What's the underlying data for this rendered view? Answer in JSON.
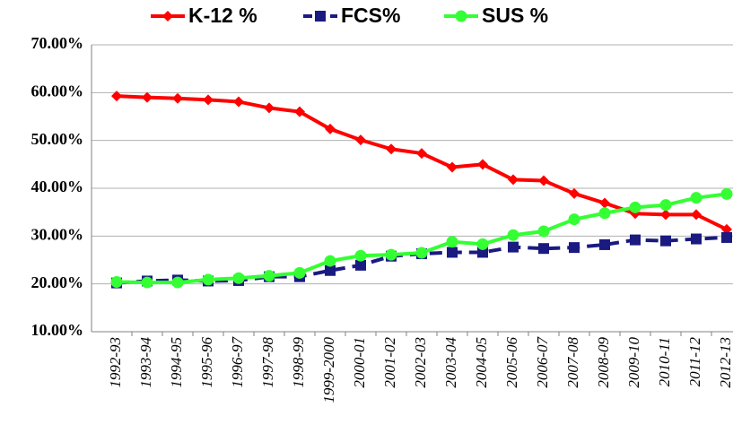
{
  "chart_data": {
    "type": "line",
    "categories": [
      "1992-93",
      "1993-94",
      "1994-95",
      "1995-96",
      "1996-97",
      "1997-98",
      "1998-99",
      "1999-2000",
      "2000-01",
      "2001-02",
      "2002-03",
      "2003-04",
      "2004-05",
      "2005-06",
      "2006-07",
      "2007-08",
      "2008-09",
      "2009-10",
      "2010-11",
      "2011-12",
      "2012-13"
    ],
    "series": [
      {
        "name": "K-12 %",
        "color": "#ff0000",
        "marker": "diamond",
        "dash": false,
        "values": [
          59.3,
          59.0,
          58.8,
          58.5,
          58.1,
          56.8,
          56.0,
          52.4,
          50.1,
          48.2,
          47.3,
          44.4,
          45.0,
          41.8,
          41.6,
          38.9,
          36.9,
          34.7,
          34.5,
          34.5,
          31.4
        ]
      },
      {
        "name": "FCS%",
        "color": "#1a1a80",
        "marker": "square",
        "dash": true,
        "values": [
          20.2,
          20.6,
          20.8,
          20.6,
          20.7,
          21.5,
          21.5,
          22.8,
          23.9,
          25.8,
          26.3,
          26.6,
          26.6,
          27.7,
          27.4,
          27.6,
          28.2,
          29.2,
          29.0,
          29.4,
          29.7
        ]
      },
      {
        "name": "SUS %",
        "color": "#33ff33",
        "marker": "circle",
        "dash": false,
        "values": [
          20.4,
          20.3,
          20.3,
          20.9,
          21.2,
          21.7,
          22.3,
          24.8,
          25.9,
          26.1,
          26.5,
          28.8,
          28.3,
          30.2,
          31.0,
          33.5,
          34.8,
          36.0,
          36.5,
          38.0,
          38.8
        ]
      }
    ],
    "ylim": [
      10,
      70
    ],
    "yticks": [
      {
        "value": 10,
        "label": "10.00%"
      },
      {
        "value": 20,
        "label": "20.00%"
      },
      {
        "value": 30,
        "label": "30.00%"
      },
      {
        "value": 40,
        "label": "40.00%"
      },
      {
        "value": 50,
        "label": "50.00%"
      },
      {
        "value": 60,
        "label": "60.00%"
      },
      {
        "value": 70,
        "label": "70.00%"
      }
    ],
    "grid": true,
    "legend": "top"
  }
}
